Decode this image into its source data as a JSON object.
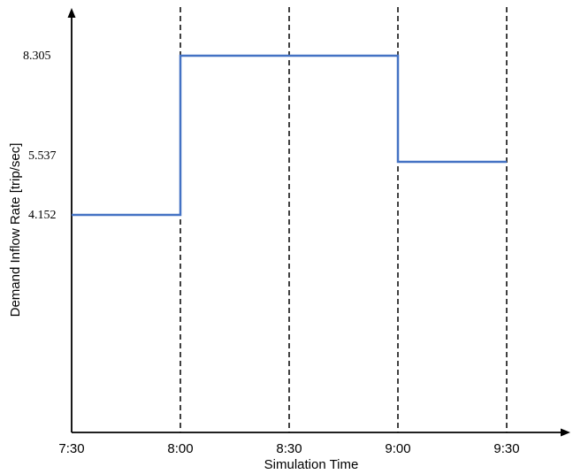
{
  "chart_data": {
    "type": "line",
    "step": true,
    "xlabel": "Simulation Time",
    "ylabel": "Demand Inflow Rate [trip/sec]",
    "x_ticks": [
      "7:30",
      "8:00",
      "8:30",
      "9:00",
      "9:30"
    ],
    "y_ticks": [
      "4.152",
      "5.537",
      "8.305"
    ],
    "xlim": [
      "7:30",
      "9:30"
    ],
    "ylim": [
      0,
      8.305
    ],
    "grid": "vertical dashed lines at 8:00, 8:30, 9:00, 9:30",
    "series": [
      {
        "color": "#4472C4",
        "points": [
          {
            "x": "7:30",
            "y": 4.152
          },
          {
            "x": "8:00",
            "y": 4.152
          },
          {
            "x": "8:00",
            "y": 8.305
          },
          {
            "x": "9:00",
            "y": 8.305
          },
          {
            "x": "9:00",
            "y": 5.537
          },
          {
            "x": "9:30",
            "y": 5.537
          }
        ]
      }
    ]
  }
}
